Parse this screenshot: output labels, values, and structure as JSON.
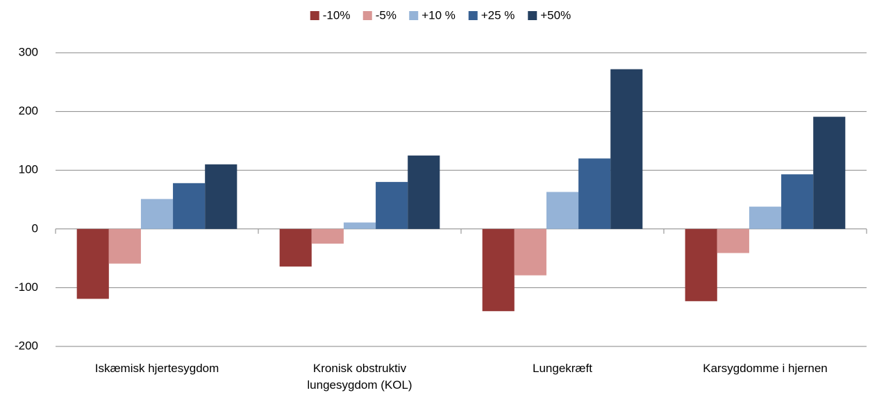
{
  "chart_data": {
    "type": "bar",
    "categories": [
      "Iskæmisk hjertesygdom",
      "Kronisk obstruktiv lungesygdom (KOL)",
      "Lungekræft",
      "Karsygdomme i hjernen"
    ],
    "series": [
      {
        "name": "-10%",
        "color": "#953735",
        "values": [
          -119,
          -64,
          -140,
          -123
        ]
      },
      {
        "name": "-5%",
        "color": "#d99694",
        "values": [
          -59,
          -25,
          -79,
          -41
        ]
      },
      {
        "name": "+10 %",
        "color": "#95b3d7",
        "values": [
          51,
          11,
          63,
          38
        ]
      },
      {
        "name": "+25 %",
        "color": "#376092",
        "values": [
          78,
          80,
          120,
          93
        ]
      },
      {
        "name": "+50%",
        "color": "#254061",
        "values": [
          110,
          125,
          272,
          191
        ]
      }
    ],
    "ylim": [
      -200,
      300
    ],
    "yticks": [
      -200,
      -100,
      0,
      100,
      200,
      300
    ],
    "grid": true,
    "legend": "top"
  }
}
